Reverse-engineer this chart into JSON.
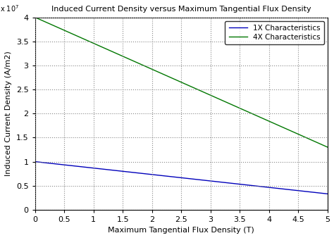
{
  "title": "Induced Current Density versus Maximum Tangential Flux Density",
  "xlabel": "Maximum Tangential Flux Density (T)",
  "ylabel": "Induced Current Density (A/m2)",
  "x_start": 0,
  "x_end": 5,
  "xlim": [
    0,
    5
  ],
  "ylim": [
    0,
    40000000.0
  ],
  "xticks": [
    0,
    0.5,
    1,
    1.5,
    2,
    2.5,
    3,
    3.5,
    4,
    4.5,
    5
  ],
  "yticks": [
    0,
    5000000.0,
    10000000.0,
    15000000.0,
    20000000.0,
    25000000.0,
    30000000.0,
    35000000.0,
    40000000.0
  ],
  "ytick_labels": [
    "0",
    "0.5",
    "1",
    "1.5",
    "2",
    "2.5",
    "3",
    "3.5",
    "4"
  ],
  "line1_color": "#0000BB",
  "line2_color": "#007700",
  "line1_label": "1X Characteristics",
  "line2_label": "4X Characteristics",
  "line1_y0": 10000000.0,
  "line1_y5": 3300000.0,
  "line2_y0": 40000000.0,
  "line2_y5": 13000000.0,
  "background_color": "#ffffff",
  "grid_color": "#888888",
  "font_family": "monospace"
}
